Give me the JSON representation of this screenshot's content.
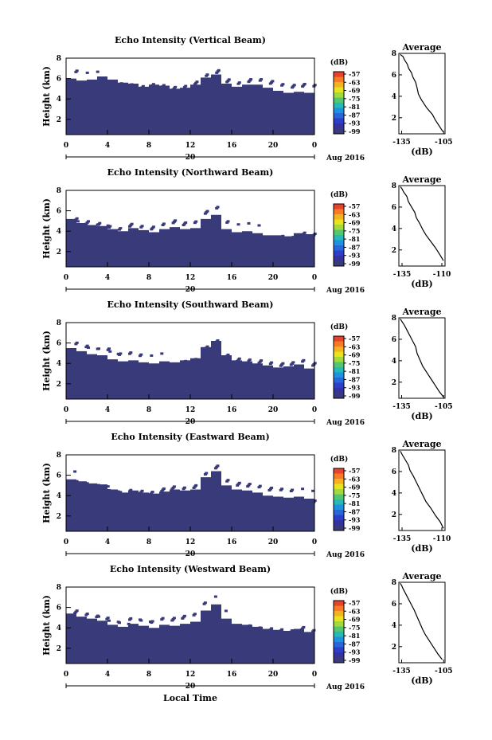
{
  "figure": {
    "x_label": "Local Time",
    "date_label": "Aug 2016",
    "date_day": "20",
    "colorbar_unit": "(dB)",
    "colorbar_ticks": [
      "-57",
      "-63",
      "-69",
      "-75",
      "-81",
      "-87",
      "-93",
      "-99"
    ],
    "colorbar_colors": [
      "#e8412c",
      "#f57b24",
      "#f4b21e",
      "#e9e31f",
      "#a5d93a",
      "#52c773",
      "#27b8b8",
      "#1e92dc",
      "#2667d9",
      "#2f3ec9",
      "#35339b",
      "#393a79"
    ]
  },
  "chart_data": [
    {
      "type": "heatmap",
      "title": "Echo Intensity (Vertical Beam)",
      "ylabel": "Height (km)",
      "xlabel": "Local Time",
      "x_ticks": [
        "0",
        "4",
        "8",
        "12",
        "16",
        "20",
        "0"
      ],
      "x_range_hours": [
        0,
        24
      ],
      "y_ticks": [
        "2",
        "4",
        "6",
        "8"
      ],
      "ylim_km": [
        0.5,
        8.0
      ],
      "fill_color": "#393a79",
      "top_km": [
        6.0,
        5.8,
        5.9,
        6.2,
        5.9,
        5.6,
        5.5,
        5.2,
        5.4,
        5.3,
        5.0,
        5.1,
        5.4,
        6.1,
        6.4,
        5.5,
        5.2,
        5.4,
        5.4,
        5.1,
        4.8,
        4.6,
        4.7,
        4.6
      ],
      "average": {
        "title": "Average",
        "xlabel": "(dB)",
        "x_ticks": [
          "-135",
          "-105"
        ],
        "xlim": [
          -137,
          -104
        ],
        "y_ticks": [
          "2",
          "4",
          "6",
          "8"
        ],
        "profile": [
          [
            -105.5,
            0.7
          ],
          [
            -108,
            1.2
          ],
          [
            -111,
            1.8
          ],
          [
            -113,
            2.3
          ],
          [
            -117,
            2.9
          ],
          [
            -119,
            3.3
          ],
          [
            -121,
            3.7
          ],
          [
            -123,
            4.2
          ],
          [
            -124,
            4.8
          ],
          [
            -125,
            5.3
          ],
          [
            -127,
            5.8
          ],
          [
            -128,
            6.2
          ],
          [
            -130,
            6.6
          ],
          [
            -131,
            7.0
          ],
          [
            -133,
            7.4
          ],
          [
            -134,
            7.7
          ],
          [
            -136,
            7.9
          ]
        ]
      }
    },
    {
      "type": "heatmap",
      "title": "Echo Intensity (Northward Beam)",
      "ylabel": "Height (km)",
      "xlabel": "Local Time",
      "x_ticks": [
        "0",
        "4",
        "8",
        "12",
        "16",
        "20",
        "0"
      ],
      "x_range_hours": [
        0,
        24
      ],
      "y_ticks": [
        "2",
        "4",
        "6",
        "8"
      ],
      "ylim_km": [
        0.5,
        8.0
      ],
      "fill_color": "#393a79",
      "top_km": [
        5.2,
        4.8,
        4.6,
        4.5,
        4.2,
        4.0,
        4.3,
        4.1,
        3.9,
        4.2,
        4.4,
        4.2,
        4.3,
        5.2,
        5.6,
        4.2,
        3.9,
        4.0,
        3.8,
        3.6,
        3.6,
        3.5,
        3.8,
        3.7
      ],
      "average": {
        "title": "Average",
        "xlabel": "(dB)",
        "x_ticks": [
          "-135",
          "-110"
        ],
        "xlim": [
          -137,
          -108
        ],
        "y_ticks": [
          "2",
          "4",
          "6",
          "8"
        ],
        "profile": [
          [
            -109,
            1.0
          ],
          [
            -111,
            1.5
          ],
          [
            -114,
            2.2
          ],
          [
            -117,
            2.8
          ],
          [
            -120,
            3.4
          ],
          [
            -122,
            3.9
          ],
          [
            -124,
            4.5
          ],
          [
            -126,
            5.0
          ],
          [
            -127,
            5.5
          ],
          [
            -129,
            6.0
          ],
          [
            -131,
            6.5
          ],
          [
            -132,
            7.0
          ],
          [
            -134,
            7.4
          ],
          [
            -135,
            7.7
          ],
          [
            -136,
            7.9
          ]
        ]
      }
    },
    {
      "type": "heatmap",
      "title": "Echo Intensity (Southward Beam)",
      "ylabel": "Height (km)",
      "xlabel": "Local Time",
      "x_ticks": [
        "0",
        "4",
        "8",
        "12",
        "16",
        "20",
        "0"
      ],
      "x_range_hours": [
        0,
        24
      ],
      "y_ticks": [
        "2",
        "4",
        "6",
        "8"
      ],
      "ylim_km": [
        0.5,
        8.0
      ],
      "fill_color": "#393a79",
      "top_km": [
        5.5,
        5.2,
        4.9,
        4.8,
        4.4,
        4.2,
        4.3,
        4.1,
        4.0,
        4.2,
        4.1,
        4.3,
        4.5,
        5.6,
        6.2,
        4.8,
        4.3,
        4.2,
        4.0,
        3.8,
        3.6,
        3.7,
        3.9,
        3.5
      ],
      "average": {
        "title": "Average",
        "xlabel": "(dB)",
        "x_ticks": [
          "-135",
          "-105"
        ],
        "xlim": [
          -137,
          -104
        ],
        "y_ticks": [
          "2",
          "4",
          "6",
          "8"
        ],
        "profile": [
          [
            -105,
            0.6
          ],
          [
            -108,
            1.1
          ],
          [
            -111,
            1.7
          ],
          [
            -114,
            2.3
          ],
          [
            -117,
            2.9
          ],
          [
            -120,
            3.5
          ],
          [
            -122,
            4.1
          ],
          [
            -124,
            4.7
          ],
          [
            -125,
            5.3
          ],
          [
            -127,
            5.8
          ],
          [
            -129,
            6.3
          ],
          [
            -131,
            6.8
          ],
          [
            -133,
            7.3
          ],
          [
            -135,
            7.7
          ],
          [
            -136,
            7.9
          ]
        ]
      }
    },
    {
      "type": "heatmap",
      "title": "Echo Intensity (Eastward Beam)",
      "ylabel": "Height (km)",
      "xlabel": "Local Time",
      "x_ticks": [
        "0",
        "4",
        "8",
        "12",
        "16",
        "20",
        "0"
      ],
      "x_range_hours": [
        0,
        24
      ],
      "y_ticks": [
        "2",
        "4",
        "6",
        "8"
      ],
      "ylim_km": [
        0.5,
        8.0
      ],
      "fill_color": "#393a79",
      "top_km": [
        5.6,
        5.4,
        5.2,
        5.1,
        4.6,
        4.3,
        4.5,
        4.3,
        4.2,
        4.4,
        4.6,
        4.5,
        4.6,
        5.8,
        6.4,
        5.0,
        4.6,
        4.5,
        4.3,
        4.0,
        3.9,
        3.8,
        3.9,
        3.7
      ],
      "average": {
        "title": "Average",
        "xlabel": "(dB)",
        "x_ticks": [
          "-135",
          "-110"
        ],
        "xlim": [
          -137,
          -108
        ],
        "y_ticks": [
          "2",
          "4",
          "6",
          "8"
        ],
        "profile": [
          [
            -109,
            0.7
          ],
          [
            -111,
            1.3
          ],
          [
            -114,
            1.9
          ],
          [
            -117,
            2.6
          ],
          [
            -120,
            3.2
          ],
          [
            -122,
            3.8
          ],
          [
            -124,
            4.4
          ],
          [
            -126,
            5.0
          ],
          [
            -128,
            5.6
          ],
          [
            -130,
            6.1
          ],
          [
            -131,
            6.6
          ],
          [
            -133,
            7.1
          ],
          [
            -135,
            7.6
          ],
          [
            -136,
            7.9
          ]
        ]
      }
    },
    {
      "type": "heatmap",
      "title": "Echo Intensity (Westward Beam)",
      "ylabel": "Height (km)",
      "xlabel": "Local Time",
      "x_ticks": [
        "0",
        "4",
        "8",
        "12",
        "16",
        "20",
        "0"
      ],
      "x_range_hours": [
        0,
        24
      ],
      "y_ticks": [
        "2",
        "4",
        "6",
        "8"
      ],
      "ylim_km": [
        0.5,
        8.0
      ],
      "fill_color": "#393a79",
      "top_km": [
        5.4,
        5.1,
        4.9,
        4.7,
        4.3,
        4.1,
        4.4,
        4.2,
        4.0,
        4.3,
        4.2,
        4.4,
        4.6,
        5.7,
        6.3,
        4.9,
        4.4,
        4.3,
        4.1,
        3.9,
        3.8,
        3.7,
        3.9,
        3.6
      ],
      "average": {
        "title": "Average",
        "xlabel": "(dB)",
        "x_ticks": [
          "-135",
          "-105"
        ],
        "xlim": [
          -137,
          -104
        ],
        "y_ticks": [
          "2",
          "4",
          "6",
          "8"
        ],
        "profile": [
          [
            -106,
            0.8
          ],
          [
            -109,
            1.3
          ],
          [
            -112,
            1.9
          ],
          [
            -115,
            2.5
          ],
          [
            -118,
            3.1
          ],
          [
            -120,
            3.6
          ],
          [
            -122,
            4.2
          ],
          [
            -124,
            4.8
          ],
          [
            -126,
            5.4
          ],
          [
            -128,
            5.9
          ],
          [
            -130,
            6.4
          ],
          [
            -132,
            6.9
          ],
          [
            -134,
            7.4
          ],
          [
            -135,
            7.7
          ],
          [
            -136,
            7.9
          ]
        ]
      }
    }
  ]
}
